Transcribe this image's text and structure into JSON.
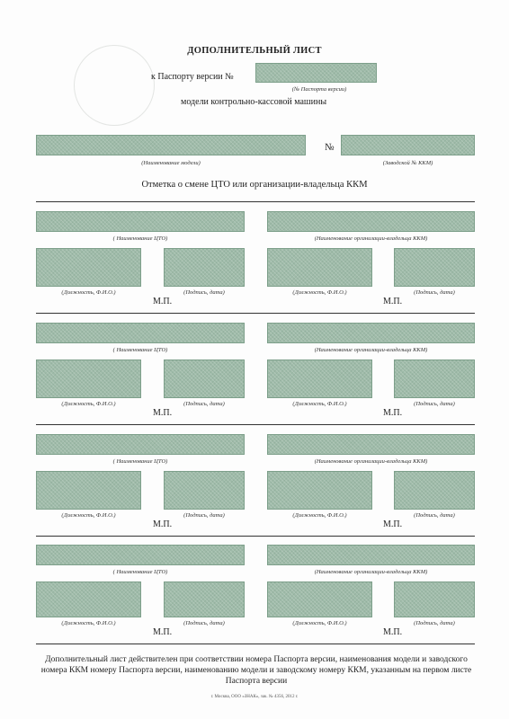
{
  "header": {
    "title": "ДОПОЛНИТЕЛЬНЫЙ ЛИСТ",
    "passport_prefix": "к Паспорту версии №",
    "passport_caption": "(№ Паспорта версии)",
    "model_line": "модели контрольно-кассовой машины"
  },
  "model_row": {
    "name_caption": "(Наименование модели)",
    "number_sign": "№",
    "serial_caption": "(Заводской № ККМ)"
  },
  "section_title": "Отметка о смене ЦТО или организации-владельца ККМ",
  "blocks": [
    {
      "cto_caption": "( Наименование ЦТО)",
      "owner_caption": "(Наименование организации-владельца ККМ)",
      "pos1": "(Должность, Ф.И.О.)",
      "sig1": "(Подпись, дата)",
      "pos2": "(Должность, Ф.И.О.)",
      "sig2": "(Подпись, дата)",
      "mp1": "М.П.",
      "mp2": "М.П."
    },
    {
      "cto_caption": "( Наименование ЦТО)",
      "owner_caption": "(Наименование организации-владельца ККМ)",
      "pos1": "(Должность, Ф.И.О.)",
      "sig1": "(Подпись, дата)",
      "pos2": "(Должность, Ф.И.О.)",
      "sig2": "(Подпись, дата)",
      "mp1": "М.П.",
      "mp2": "М.П."
    },
    {
      "cto_caption": "( Наименование ЦТО)",
      "owner_caption": "(Наименование организации-владельца ККМ)",
      "pos1": "(Должность, Ф.И.О.)",
      "sig1": "(Подпись, дата)",
      "pos2": "(Должность, Ф.И.О.)",
      "sig2": "(Подпись, дата)",
      "mp1": "М.П.",
      "mp2": "М.П."
    },
    {
      "cto_caption": "( Наименование ЦТО)",
      "owner_caption": "(Наименование организации-владельца ККМ)",
      "pos1": "(Должность, Ф.И.О.)",
      "sig1": "(Подпись, дата)",
      "pos2": "(Должность, Ф.И.О.)",
      "sig2": "(Подпись, дата)",
      "mp1": "М.П.",
      "mp2": "М.П."
    }
  ],
  "footnote": "Дополнительный лист действителен при соответствии номера Паспорта версии, наименования модели и заводского номера ККМ номеру Паспорта версии, наименованию модели и заводскому номеру ККМ, указанным на первом листе Паспорта версии",
  "imprint": "г. Москва, ООО «ЗНАК», зак. № 4356, 2012 г.",
  "colors": {
    "field": "#9fbba9",
    "field_border": "#7d9f8a",
    "rule": "#333333"
  }
}
